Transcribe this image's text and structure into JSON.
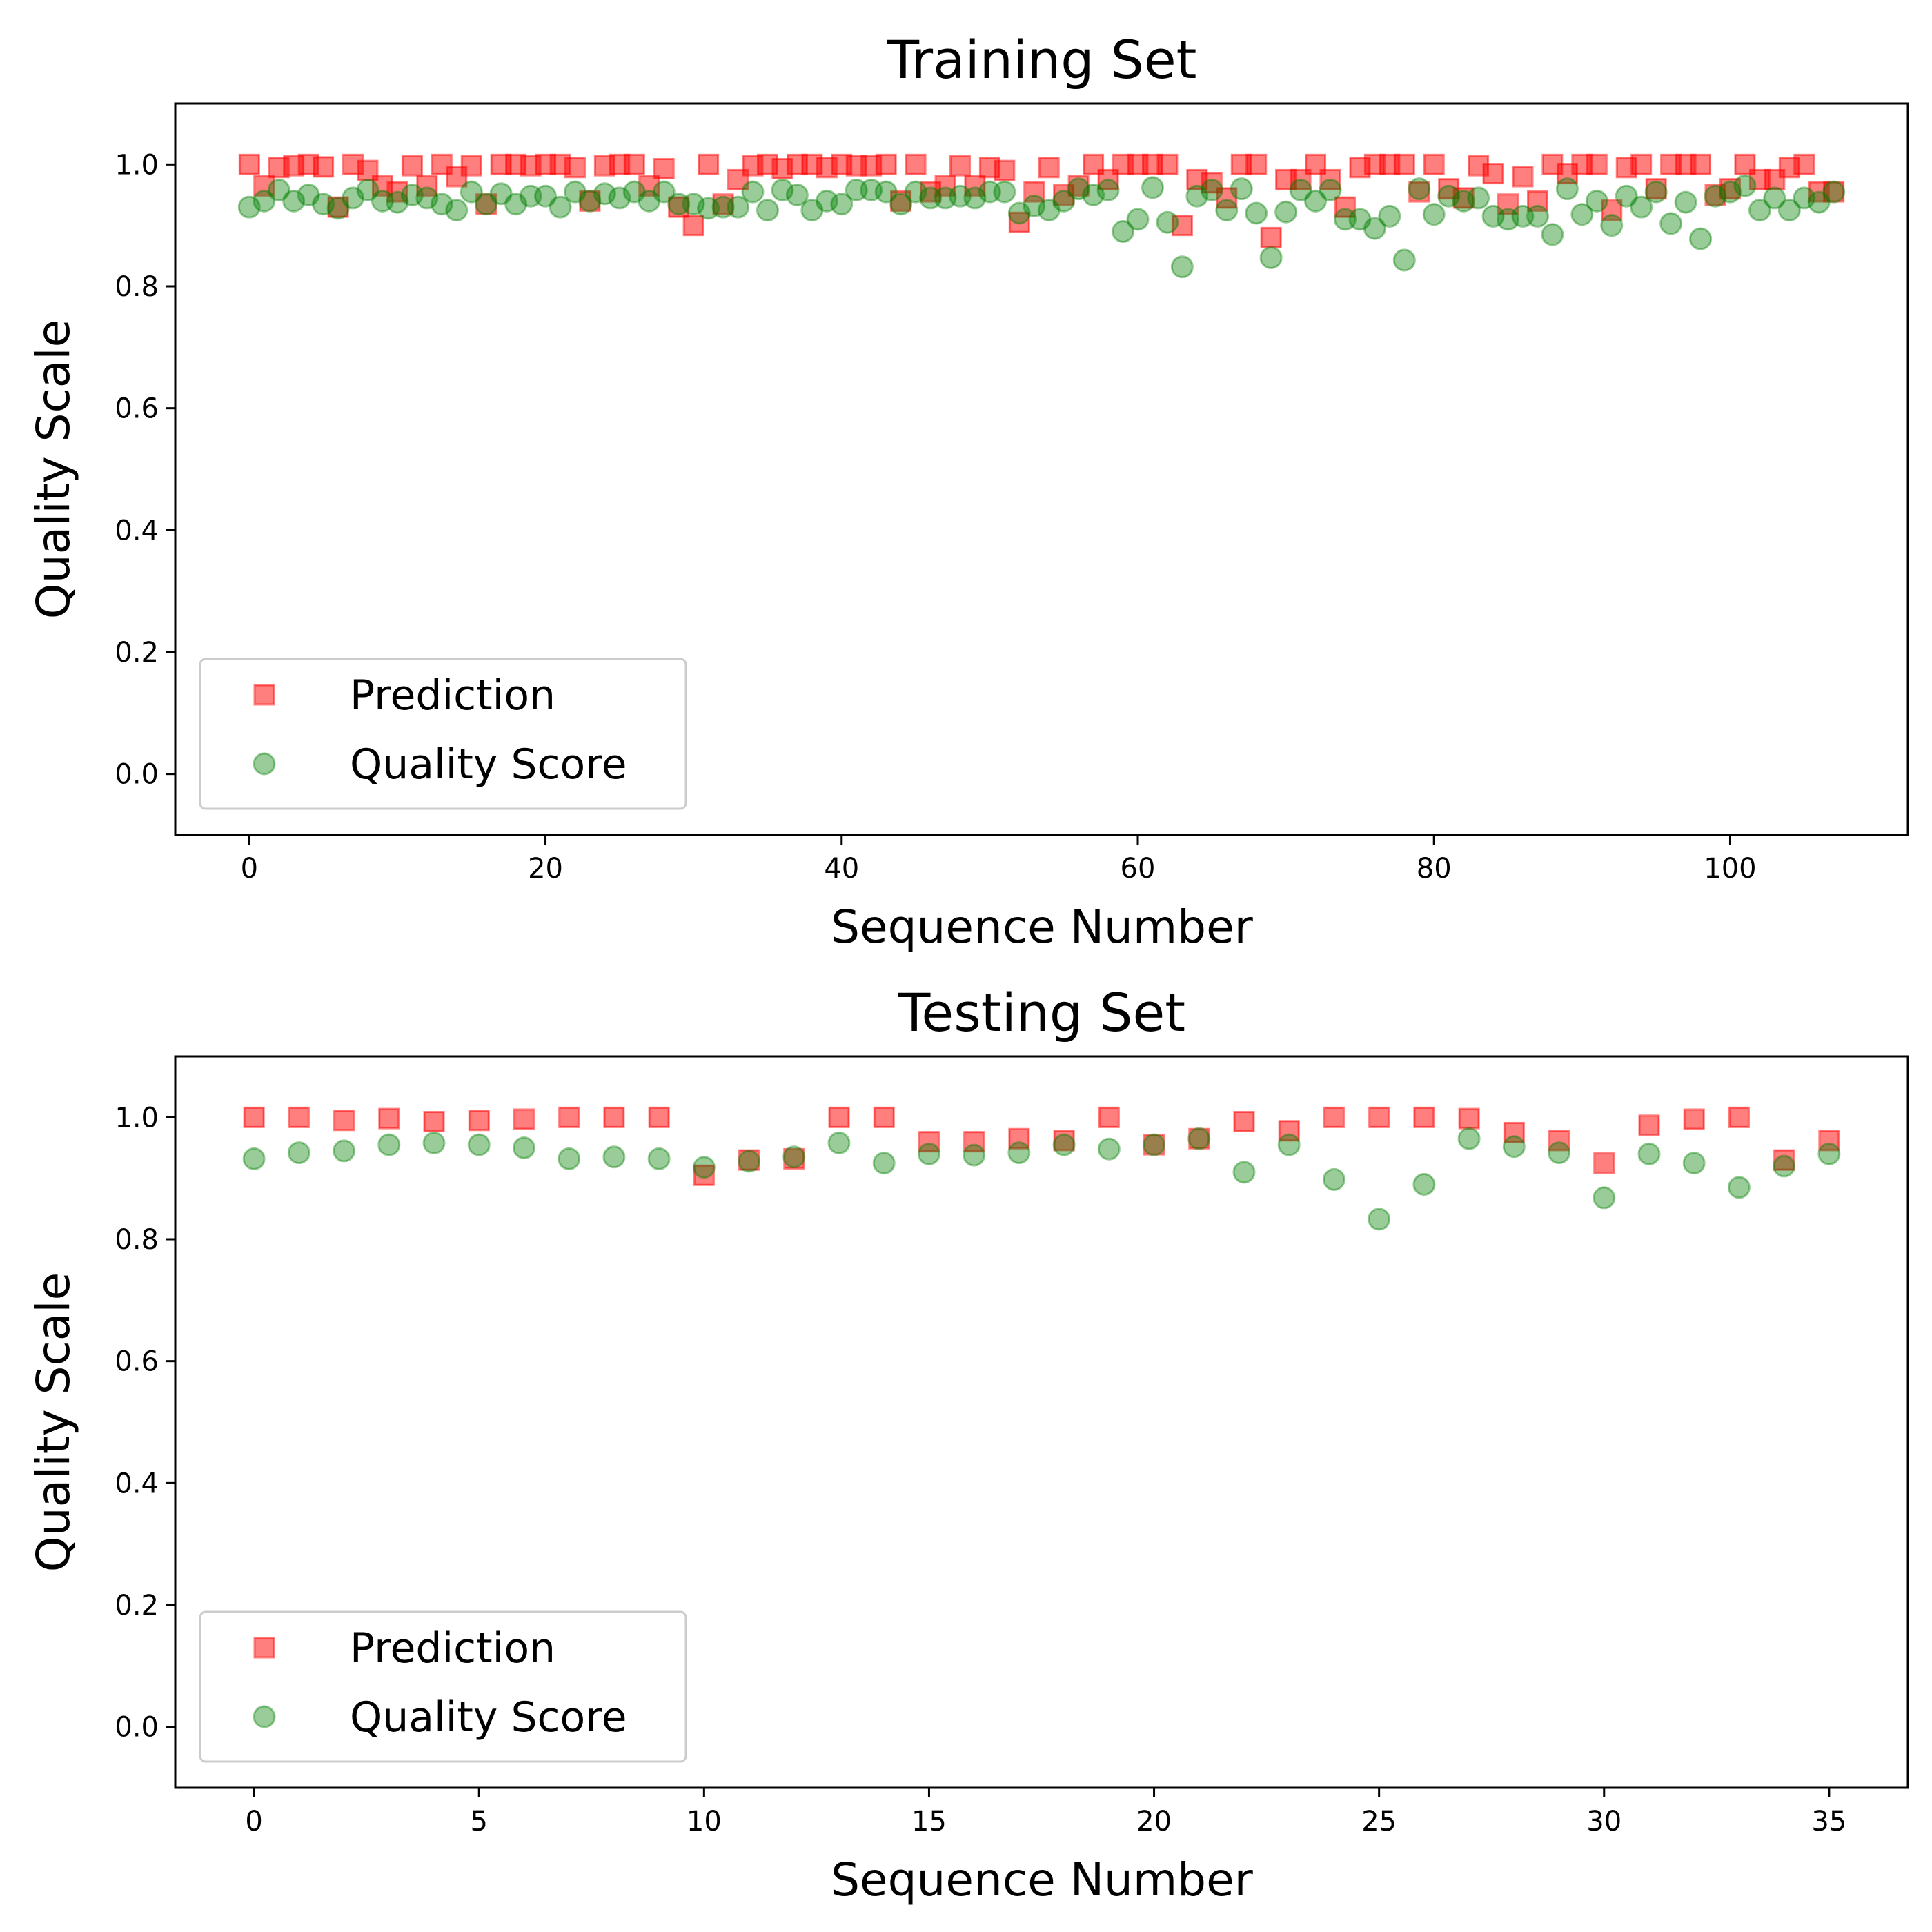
{
  "colors": {
    "prediction": "#ff0000",
    "quality": "#008000",
    "axis": "#000000",
    "legend_border": "#cccccc"
  },
  "charts": [
    {
      "title": "Training Set",
      "xlabel": "Sequence Number",
      "ylabel": "Quality Scale",
      "legend": {
        "prediction": "Prediction",
        "quality": "Quality Score"
      }
    },
    {
      "title": "Testing Set",
      "xlabel": "Sequence Number",
      "ylabel": "Quality Scale",
      "legend": {
        "prediction": "Prediction",
        "quality": "Quality Score"
      }
    }
  ],
  "chart_data": [
    {
      "type": "scatter",
      "title": "Training Set",
      "xlabel": "Sequence Number",
      "ylabel": "Quality Scale",
      "xlim": [
        -5,
        112
      ],
      "ylim": [
        -0.1,
        1.1
      ],
      "xticks": [
        0,
        20,
        40,
        60,
        80,
        100
      ],
      "yticks": [
        0.0,
        0.2,
        0.4,
        0.6,
        0.8,
        1.0
      ],
      "legend_position": "lower-left",
      "grid": false,
      "series": [
        {
          "name": "Prediction",
          "marker": "square",
          "color": "#ff0000",
          "values": [
            1.0,
            0.965,
            0.995,
            0.998,
            1.0,
            0.996,
            0.93,
            1.0,
            0.99,
            0.965,
            0.955,
            0.998,
            0.965,
            1.0,
            0.98,
            0.998,
            0.935,
            1.0,
            1.0,
            0.998,
            1.0,
            1.0,
            0.995,
            0.94,
            0.998,
            1.0,
            1.0,
            0.965,
            0.993,
            0.93,
            0.9,
            1.0,
            0.935,
            0.975,
            0.998,
            1.0,
            0.993,
            1.0,
            1.0,
            0.995,
            1.0,
            0.998,
            0.998,
            1.0,
            0.94,
            1.0,
            0.955,
            0.965,
            0.998,
            0.965,
            0.995,
            0.99,
            0.905,
            0.955,
            0.995,
            0.95,
            0.965,
            1.0,
            0.975,
            1.0,
            1.0,
            1.0,
            1.0,
            0.9,
            0.975,
            0.97,
            0.945,
            1.0,
            1.0,
            0.88,
            0.975,
            0.975,
            1.0,
            0.975,
            0.93,
            0.995,
            1.0,
            1.0,
            1.0,
            0.955,
            1.0,
            0.96,
            0.945,
            0.998,
            0.985,
            0.935,
            0.98,
            0.94,
            1.0,
            0.985,
            1.0,
            1.0,
            0.925,
            0.995,
            1.0,
            0.96,
            1.0,
            1.0,
            1.0,
            0.95,
            0.96,
            1.0,
            0.975,
            0.975,
            0.995,
            1.0,
            0.955,
            0.955
          ]
        },
        {
          "name": "Quality Score",
          "marker": "circle",
          "color": "#008000",
          "values": [
            0.93,
            0.94,
            0.958,
            0.94,
            0.95,
            0.935,
            0.928,
            0.945,
            0.958,
            0.94,
            0.938,
            0.95,
            0.945,
            0.935,
            0.925,
            0.955,
            0.935,
            0.952,
            0.935,
            0.948,
            0.948,
            0.93,
            0.955,
            0.94,
            0.952,
            0.945,
            0.955,
            0.94,
            0.955,
            0.935,
            0.935,
            0.928,
            0.93,
            0.93,
            0.955,
            0.925,
            0.958,
            0.95,
            0.925,
            0.94,
            0.935,
            0.958,
            0.958,
            0.955,
            0.935,
            0.955,
            0.945,
            0.945,
            0.948,
            0.945,
            0.955,
            0.955,
            0.92,
            0.932,
            0.925,
            0.94,
            0.96,
            0.95,
            0.958,
            0.89,
            0.91,
            0.962,
            0.905,
            0.832,
            0.948,
            0.958,
            0.925,
            0.96,
            0.92,
            0.847,
            0.922,
            0.958,
            0.94,
            0.958,
            0.91,
            0.91,
            0.895,
            0.915,
            0.843,
            0.96,
            0.918,
            0.948,
            0.94,
            0.945,
            0.915,
            0.91,
            0.915,
            0.915,
            0.885,
            0.96,
            0.918,
            0.94,
            0.9,
            0.948,
            0.93,
            0.955,
            0.903,
            0.938,
            0.878,
            0.948,
            0.955,
            0.965,
            0.925,
            0.945,
            0.925,
            0.945,
            0.938,
            0.955
          ]
        }
      ]
    },
    {
      "type": "scatter",
      "title": "Testing Set",
      "xlabel": "Sequence Number",
      "ylabel": "Quality Scale",
      "xlim": [
        -1.75,
        36.75
      ],
      "ylim": [
        -0.1,
        1.1
      ],
      "xticks": [
        0,
        5,
        10,
        15,
        20,
        25,
        30,
        35
      ],
      "yticks": [
        0.0,
        0.2,
        0.4,
        0.6,
        0.8,
        1.0
      ],
      "legend_position": "lower-left",
      "grid": false,
      "series": [
        {
          "name": "Prediction",
          "marker": "square",
          "color": "#ff0000",
          "values": [
            1.0,
            1.0,
            0.995,
            0.998,
            0.993,
            0.995,
            0.997,
            1.0,
            1.0,
            1.0,
            0.905,
            0.93,
            0.932,
            1.0,
            1.0,
            0.96,
            0.96,
            0.965,
            0.962,
            1.0,
            0.955,
            0.965,
            0.993,
            0.978,
            1.0,
            1.0,
            1.0,
            0.998,
            0.975,
            0.962,
            0.925,
            0.987,
            0.997,
            1.0,
            0.93,
            0.962
          ]
        },
        {
          "name": "Quality Score",
          "marker": "circle",
          "color": "#008000",
          "values": [
            0.932,
            0.942,
            0.945,
            0.955,
            0.958,
            0.955,
            0.95,
            0.932,
            0.935,
            0.932,
            0.918,
            0.928,
            0.935,
            0.958,
            0.925,
            0.94,
            0.938,
            0.942,
            0.955,
            0.948,
            0.955,
            0.965,
            0.91,
            0.955,
            0.898,
            0.833,
            0.89,
            0.965,
            0.952,
            0.942,
            0.868,
            0.94,
            0.925,
            0.885,
            0.92,
            0.94
          ]
        }
      ]
    }
  ]
}
